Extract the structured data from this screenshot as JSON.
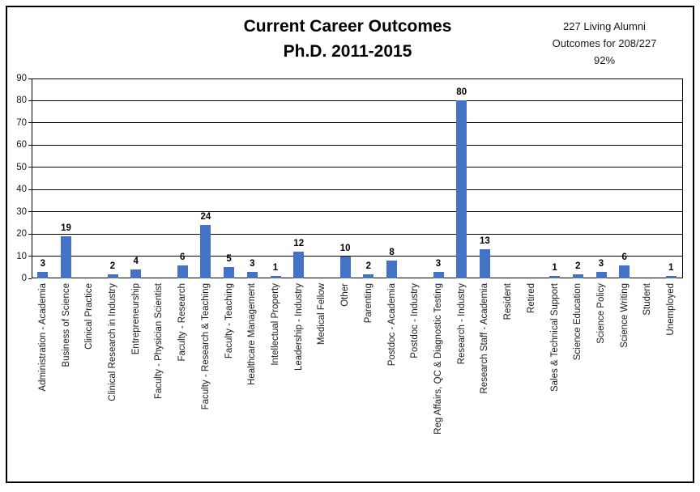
{
  "title": {
    "line1": "Current Career Outcomes",
    "line2": "Ph.D. 2011-2015"
  },
  "annotation": {
    "line1": "227 Living Alumni",
    "line2": "Outcomes for 208/227",
    "line3": "92%"
  },
  "chart_data": {
    "type": "bar",
    "title": "Current Career Outcomes Ph.D. 2011-2015",
    "annotation": "227 Living Alumni Outcomes for 208/227 92%",
    "categories": [
      "Administration - Academia",
      "Business of Science",
      "Clinical Practice",
      "Clinical Research in Industry",
      "Entrepreneurship",
      "Faculty - Physician Scientist",
      "Faculty - Research",
      "Faculty - Research & Teaching",
      "Faculty - Teaching",
      "Healthcare Management",
      "Intellectual Property",
      "Leadership - Industry",
      "Medical Fellow",
      "Other",
      "Parenting",
      "Postdoc - Academia",
      "Postdoc - Industry",
      "Reg Affairs, QC & Diagnostic Testing",
      "Research - Industry",
      "Research Staff - Academia",
      "Resident",
      "Retired",
      "Sales & Technical Support",
      "Science Education",
      "Science Policy",
      "Science Writing",
      "Student",
      "Unemployed"
    ],
    "values": [
      3,
      19,
      0,
      2,
      4,
      0,
      6,
      24,
      5,
      3,
      1,
      12,
      0,
      10,
      2,
      8,
      0,
      3,
      80,
      13,
      0,
      0,
      1,
      2,
      3,
      6,
      0,
      1
    ],
    "xlabel": "",
    "ylabel": "",
    "ylim": [
      0,
      90
    ],
    "ytick_step": 10,
    "grid": true,
    "legend": false,
    "data_labels": true,
    "bar_color": "#4472C4"
  }
}
